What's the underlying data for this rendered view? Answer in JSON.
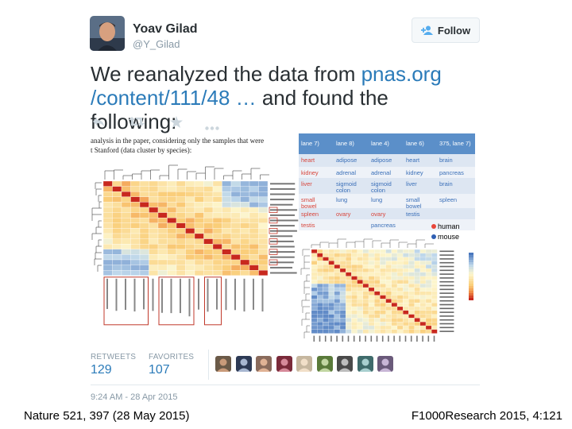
{
  "tweet": {
    "fullname": "Yoav Gilad",
    "username": "@Y_Gilad",
    "follow_label": "Follow",
    "text_part1": "We reanalyzed the data from ",
    "link_text": "pnas.org /content/111/48 …",
    "text_part2": " and found the following:",
    "actions": [
      "reply-icon",
      "retweet-icon",
      "favorite-icon",
      "more-icon"
    ],
    "retweets_label": "RETWEETS",
    "retweets_count": "129",
    "favorites_label": "FAVORITES",
    "favorites_count": "107",
    "favoriters_count_shown": 9,
    "timestamp": "9:24 AM - 28 Apr 2015"
  },
  "media": {
    "left_caption_line1": "analysis in the paper, considering only the samples that were",
    "left_caption_line2": "t Stanford (data cluster by species):",
    "table_headers": [
      "lane 7)",
      "lane 8)",
      "lane 4)",
      "lane 6)",
      "375, lane 7)"
    ],
    "table_rows": [
      [
        "heart",
        "adipose",
        "adipose",
        "heart",
        "brain"
      ],
      [
        "kidney",
        "adrenal",
        "adrenal",
        "kidney",
        "pancreas"
      ],
      [
        "liver",
        "sigmoid colon",
        "sigmoid colon",
        "liver",
        "brain"
      ],
      [
        "small bowel",
        "lung",
        "lung",
        "small bowel",
        "spleen"
      ],
      [
        "spleen",
        "ovary",
        "ovary",
        "testis",
        ""
      ],
      [
        "testis",
        "",
        "pancreas",
        "",
        ""
      ]
    ],
    "legend_human": "human",
    "legend_mouse": "mouse",
    "colors": {
      "human": "#e8463a",
      "mouse": "#2f5fb3",
      "table_header": "#5b8fc9",
      "accent_link": "#2b7bb9"
    }
  },
  "captions": {
    "left": "Nature 521, 397 (28 May 2015)",
    "right": "F1000Research 2015, 4:121"
  }
}
